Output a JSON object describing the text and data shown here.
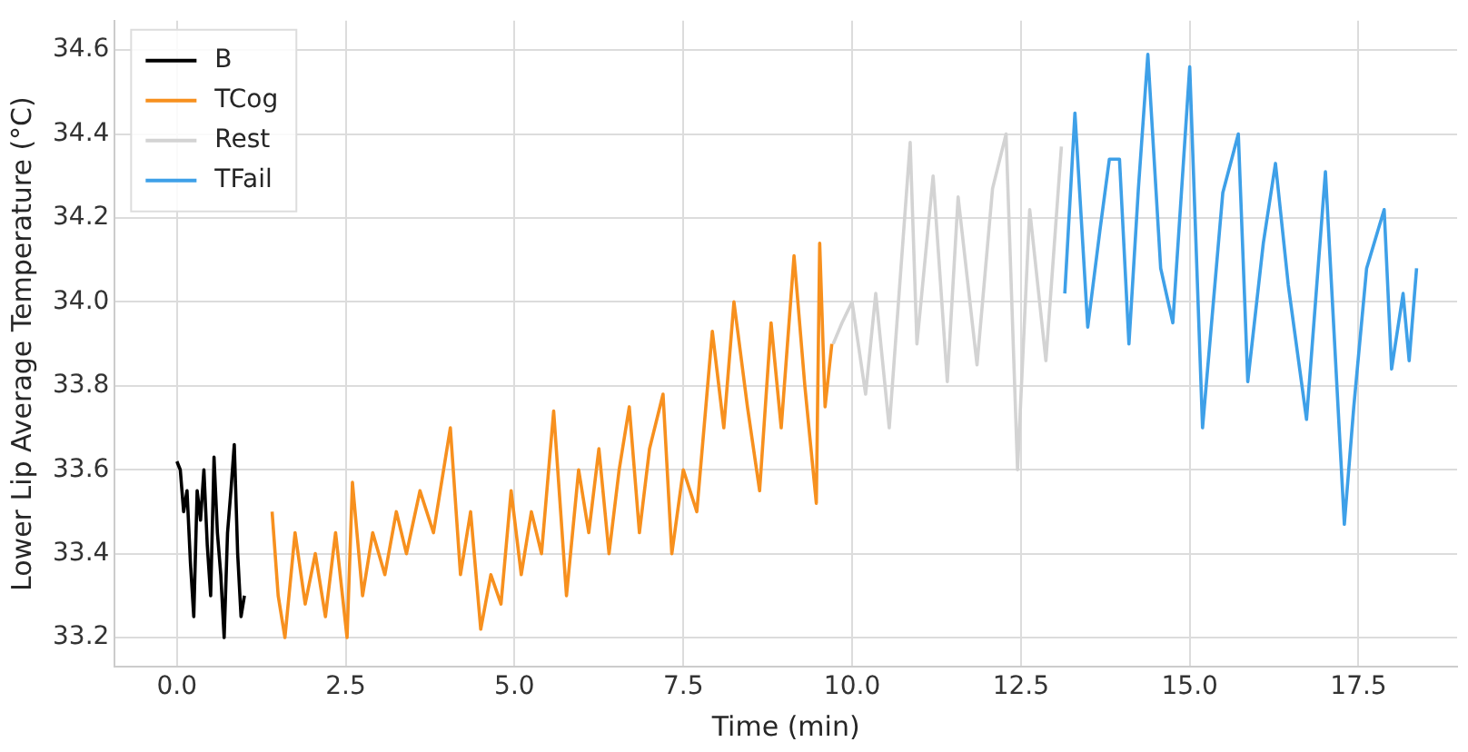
{
  "chart_data": {
    "type": "line",
    "xlabel": "Time (min)",
    "ylabel": "Lower Lip Average Temperature (°C)",
    "xlim": [
      -0.92,
      18.96
    ],
    "ylim": [
      33.13,
      34.67
    ],
    "xticks": [
      {
        "value": 0,
        "label": "0.0"
      },
      {
        "value": 2.5,
        "label": "2.5"
      },
      {
        "value": 5,
        "label": "5.0"
      },
      {
        "value": 7.5,
        "label": "7.5"
      },
      {
        "value": 10,
        "label": "10.0"
      },
      {
        "value": 12.5,
        "label": "12.5"
      },
      {
        "value": 15,
        "label": "15.0"
      },
      {
        "value": 17.5,
        "label": "17.5"
      }
    ],
    "yticks": [
      {
        "value": 33.2,
        "label": "33.2"
      },
      {
        "value": 33.4,
        "label": "33.4"
      },
      {
        "value": 33.6,
        "label": "33.6"
      },
      {
        "value": 33.8,
        "label": "33.8"
      },
      {
        "value": 34,
        "label": "34.0"
      },
      {
        "value": 34.2,
        "label": "34.2"
      },
      {
        "value": 34.4,
        "label": "34.4"
      },
      {
        "value": 34.6,
        "label": "34.6"
      }
    ],
    "grid": true,
    "legend": "top left",
    "marker": "none",
    "line_style": "solid",
    "series": [
      {
        "name": "B",
        "color": "#000000",
        "x": [
          0,
          0.05,
          0.1,
          0.15,
          0.2,
          0.25,
          0.3,
          0.35,
          0.4,
          0.45,
          0.5,
          0.55,
          0.6,
          0.65,
          0.7,
          0.75,
          0.8,
          0.85,
          0.9,
          0.95,
          1.0
        ],
        "values": [
          33.62,
          33.6,
          33.5,
          33.55,
          33.38,
          33.25,
          33.55,
          33.48,
          33.6,
          33.42,
          33.3,
          33.63,
          33.45,
          33.35,
          33.2,
          33.45,
          33.55,
          33.66,
          33.4,
          33.25,
          33.3
        ]
      },
      {
        "name": "TCog",
        "color": "#f7901e",
        "x": [
          1.41,
          1.5,
          1.6,
          1.75,
          1.9,
          2.05,
          2.2,
          2.35,
          2.52,
          2.6,
          2.75,
          2.9,
          3.08,
          3.25,
          3.4,
          3.6,
          3.8,
          4.05,
          4.2,
          4.35,
          4.5,
          4.65,
          4.8,
          4.95,
          5.1,
          5.25,
          5.4,
          5.58,
          5.77,
          5.95,
          6.1,
          6.25,
          6.4,
          6.55,
          6.7,
          6.85,
          7.0,
          7.2,
          7.33,
          7.5,
          7.7,
          7.93,
          8.1,
          8.25,
          8.45,
          8.63,
          8.8,
          8.95,
          9.14,
          9.3,
          9.47,
          9.52,
          9.6,
          9.7
        ],
        "values": [
          33.5,
          33.3,
          33.2,
          33.45,
          33.28,
          33.4,
          33.25,
          33.45,
          33.2,
          33.57,
          33.3,
          33.45,
          33.35,
          33.5,
          33.4,
          33.55,
          33.45,
          33.7,
          33.35,
          33.5,
          33.22,
          33.35,
          33.28,
          33.55,
          33.35,
          33.5,
          33.4,
          33.74,
          33.3,
          33.6,
          33.45,
          33.65,
          33.4,
          33.6,
          33.75,
          33.45,
          33.65,
          33.78,
          33.4,
          33.6,
          33.5,
          33.93,
          33.7,
          34.0,
          33.75,
          33.55,
          33.95,
          33.7,
          34.11,
          33.8,
          33.52,
          34.14,
          33.75,
          33.9
        ]
      },
      {
        "name": "Rest",
        "color": "#d3d3d3",
        "x": [
          9.72,
          9.85,
          10.0,
          10.2,
          10.35,
          10.55,
          10.86,
          10.96,
          11.2,
          11.41,
          11.57,
          11.85,
          12.08,
          12.28,
          12.45,
          12.63,
          12.87,
          13.1
        ],
        "values": [
          33.9,
          33.95,
          34.0,
          33.78,
          34.02,
          33.7,
          34.38,
          33.9,
          34.3,
          33.81,
          34.25,
          33.85,
          34.27,
          34.4,
          33.6,
          34.22,
          33.86,
          34.37
        ]
      },
      {
        "name": "TFail",
        "color": "#3ea0e8",
        "x": [
          13.15,
          13.3,
          13.49,
          13.67,
          13.81,
          13.96,
          14.1,
          14.24,
          14.38,
          14.57,
          14.75,
          15.0,
          15.19,
          15.49,
          15.72,
          15.86,
          16.09,
          16.27,
          16.46,
          16.73,
          17.01,
          17.29,
          17.43,
          17.62,
          17.88,
          17.99,
          18.16,
          18.25,
          18.36
        ],
        "values": [
          34.02,
          34.45,
          33.94,
          34.17,
          34.34,
          34.34,
          33.9,
          34.27,
          34.59,
          34.08,
          33.95,
          34.56,
          33.7,
          34.26,
          34.4,
          33.81,
          34.14,
          34.33,
          34.04,
          33.72,
          34.31,
          33.47,
          33.75,
          34.08,
          34.22,
          33.84,
          34.02,
          33.86,
          34.08
        ]
      }
    ]
  }
}
